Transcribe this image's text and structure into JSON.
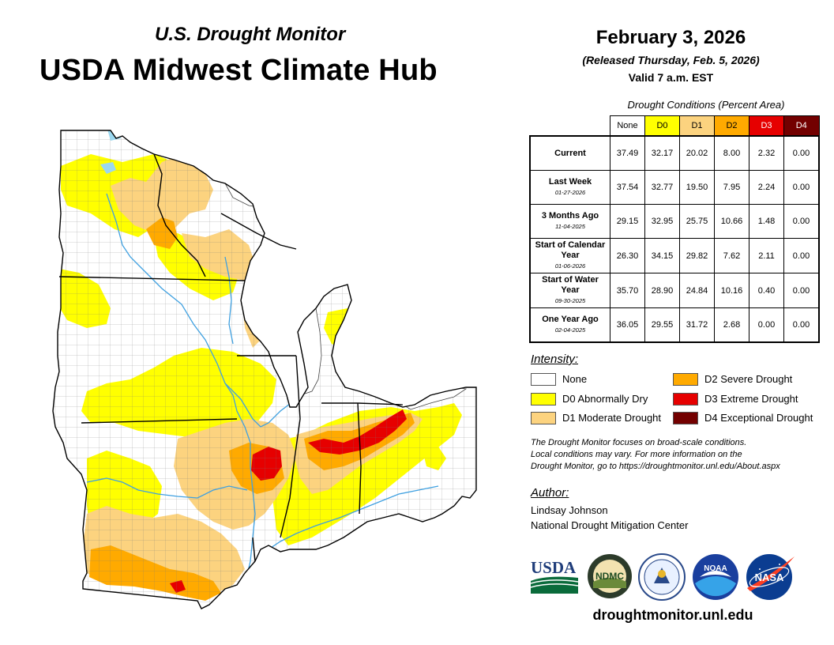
{
  "header": {
    "subtitle": "U.S. Drought Monitor",
    "title": "USDA Midwest Climate Hub"
  },
  "date": {
    "main": "February 3, 2026",
    "released": "(Released Thursday, Feb. 5, 2026)",
    "valid": "Valid 7 a.m. EST"
  },
  "table": {
    "caption": "Drought Conditions (Percent Area)",
    "columns": [
      "None",
      "D0",
      "D1",
      "D2",
      "D3",
      "D4"
    ],
    "column_colors": [
      "#ffffff",
      "#ffff00",
      "#fcd37f",
      "#ffaa00",
      "#e60000",
      "#730000"
    ],
    "rows": [
      {
        "label": "Current",
        "date": "",
        "values": [
          "37.49",
          "32.17",
          "20.02",
          "8.00",
          "2.32",
          "0.00"
        ]
      },
      {
        "label": "Last Week",
        "date": "01-27-2026",
        "values": [
          "37.54",
          "32.77",
          "19.50",
          "7.95",
          "2.24",
          "0.00"
        ]
      },
      {
        "label": "3 Months Ago",
        "date": "11-04-2025",
        "values": [
          "29.15",
          "32.95",
          "25.75",
          "10.66",
          "1.48",
          "0.00"
        ]
      },
      {
        "label": "Start of Calendar Year",
        "date": "01-06-2026",
        "values": [
          "26.30",
          "34.15",
          "29.82",
          "7.62",
          "2.11",
          "0.00"
        ]
      },
      {
        "label": "Start of Water Year",
        "date": "09-30-2025",
        "values": [
          "35.70",
          "28.90",
          "24.84",
          "10.16",
          "0.40",
          "0.00"
        ]
      },
      {
        "label": "One Year Ago",
        "date": "02-04-2025",
        "values": [
          "36.05",
          "29.55",
          "31.72",
          "2.68",
          "0.00",
          "0.00"
        ]
      }
    ]
  },
  "legend": {
    "title": "Intensity:",
    "items": [
      {
        "label": "None",
        "color": "#ffffff"
      },
      {
        "label": "D0 Abnormally Dry",
        "color": "#ffff00"
      },
      {
        "label": "D1 Moderate Drought",
        "color": "#fcd37f"
      },
      {
        "label": "D2 Severe Drought",
        "color": "#ffaa00"
      },
      {
        "label": "D3 Extreme Drought",
        "color": "#e60000"
      },
      {
        "label": "D4 Exceptional Drought",
        "color": "#730000"
      }
    ]
  },
  "note": {
    "line1": "The Drought Monitor focuses on broad-scale conditions.",
    "line2": "Local conditions may vary. For more information on the",
    "line3": "Drought Monitor, go to https://droughtmonitor.unl.edu/About.aspx"
  },
  "author": {
    "title": "Author:",
    "name": "Lindsay Johnson",
    "org": "National Drought Mitigation Center"
  },
  "logos": {
    "usda": "USDA",
    "ndmc": "NDMC",
    "noaa": "NOAA",
    "nasa": "NASA"
  },
  "website": "droughtmonitor.unl.edu",
  "map": {
    "colors": {
      "none": "#ffffff",
      "d0": "#ffff00",
      "d1": "#fcd37f",
      "d2": "#ffaa00",
      "d3": "#e60000",
      "water": "#9bd8f0",
      "river": "#3fa0e0"
    }
  }
}
